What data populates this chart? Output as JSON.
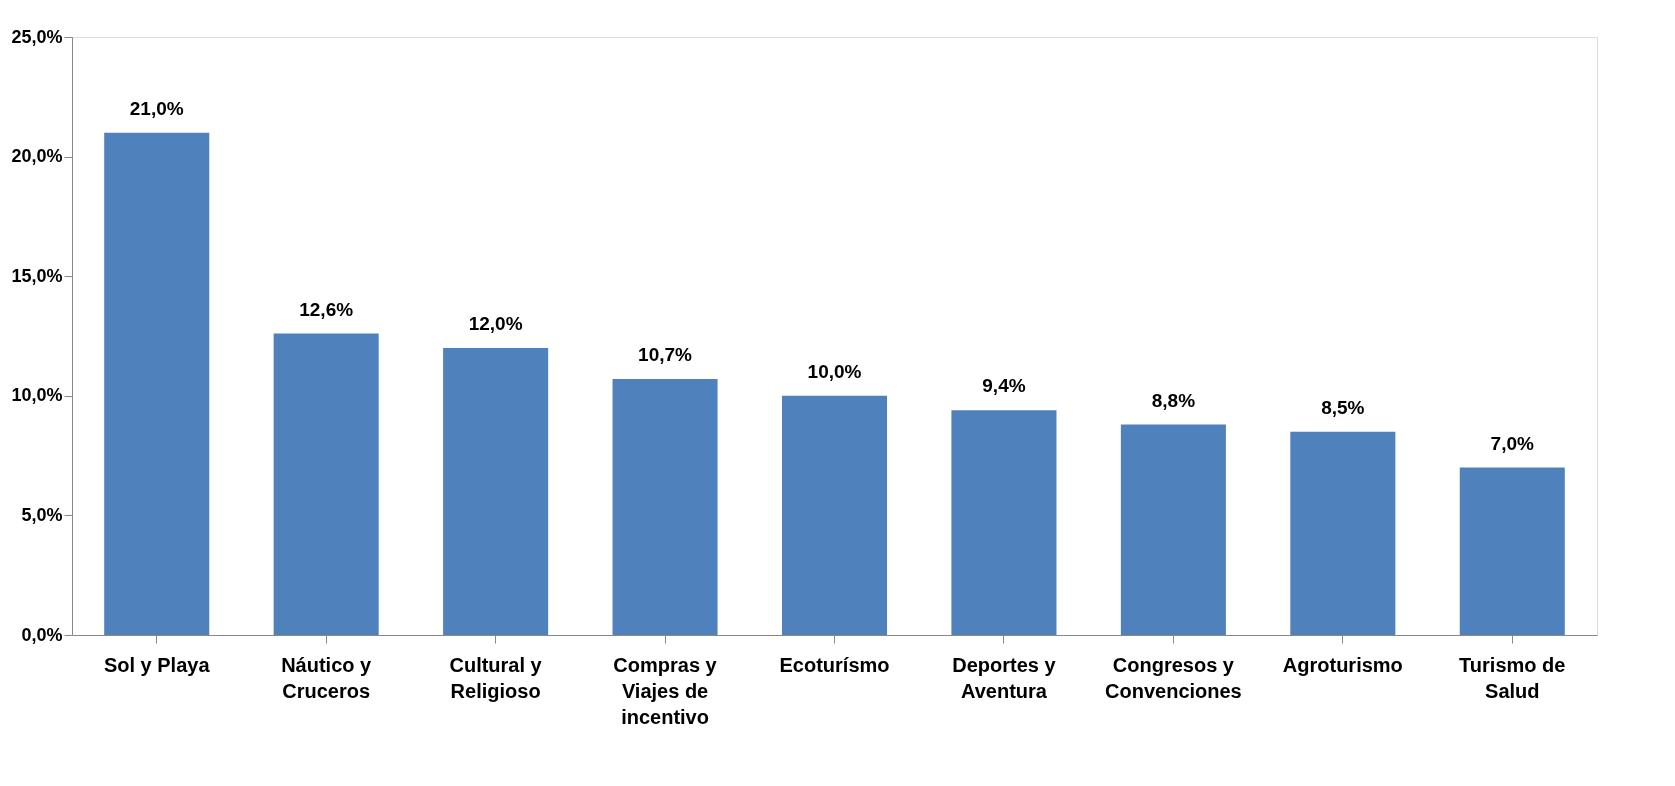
{
  "chart_data": {
    "type": "bar",
    "categories": [
      "Sol y Playa",
      "Náutico y Cruceros",
      "Cultural y Religioso",
      "Compras y Viajes de incentivo",
      "Ecoturísmo",
      "Deportes y Aventura",
      "Congresos y Convenciones",
      "Agroturismo",
      "Turismo de Salud"
    ],
    "values": [
      21.0,
      12.6,
      12.0,
      10.7,
      10.0,
      9.4,
      8.8,
      8.5,
      7.0
    ],
    "value_labels": [
      "21,0%",
      "12,6%",
      "12,0%",
      "10,7%",
      "10,0%",
      "9,4%",
      "8,8%",
      "8,5%",
      "7,0%"
    ],
    "color": "#4f81bd",
    "ylim": [
      0,
      25
    ],
    "yticks": [
      {
        "value": 0,
        "label": "0,0%"
      },
      {
        "value": 5,
        "label": "5,0%"
      },
      {
        "value": 10,
        "label": "10,0%"
      },
      {
        "value": 15,
        "label": "15,0%"
      },
      {
        "value": 20,
        "label": "20,0%"
      },
      {
        "value": 25,
        "label": "25,0%"
      }
    ],
    "grid": false
  }
}
